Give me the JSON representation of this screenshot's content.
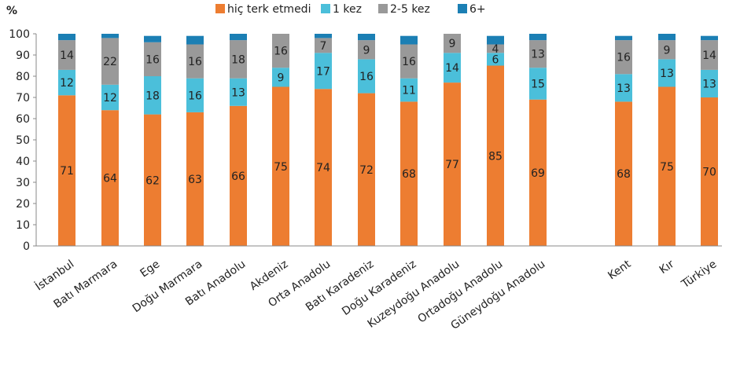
{
  "chart_data": {
    "type": "bar",
    "stacked": true,
    "y_unit_label": "%",
    "ylim": [
      0,
      100
    ],
    "yticks": [
      0,
      10,
      20,
      30,
      40,
      50,
      60,
      70,
      80,
      90,
      100
    ],
    "grid": false,
    "legend_position": "top",
    "categories": [
      "İstanbul",
      "Batı Marmara",
      "Ege",
      "Doğu Marmara",
      "Batı Anadolu",
      "Akdeniz",
      "Orta Anadolu",
      "Batı Karadeniz",
      "Doğu Karadeniz",
      "Kuzeydoğu Anadolu",
      "Ortadoğu Anadolu",
      "Güneydoğu Anadolu",
      "Kent",
      "Kır",
      "Türkiye"
    ],
    "series": [
      {
        "name": "hiç terk etmedi",
        "color": "#ED7D31",
        "values": [
          71,
          64,
          62,
          63,
          66,
          75,
          74,
          72,
          68,
          77,
          85,
          69,
          68,
          75,
          70
        ]
      },
      {
        "name": "1 kez",
        "color": "#4BBFDA",
        "values": [
          12,
          12,
          18,
          16,
          13,
          9,
          17,
          16,
          11,
          14,
          6,
          15,
          13,
          13,
          13
        ]
      },
      {
        "name": "2-5 kez",
        "color": "#999999",
        "values": [
          14,
          22,
          16,
          16,
          18,
          16,
          7,
          9,
          16,
          9,
          4,
          13,
          16,
          9,
          14
        ]
      },
      {
        "name": "6+",
        "color": "#1B7FB4",
        "values": [
          3,
          2,
          3,
          4,
          3,
          0,
          2,
          3,
          4,
          0,
          4,
          3,
          2,
          3,
          2
        ]
      }
    ],
    "label_series": [
      0,
      1,
      2
    ]
  }
}
